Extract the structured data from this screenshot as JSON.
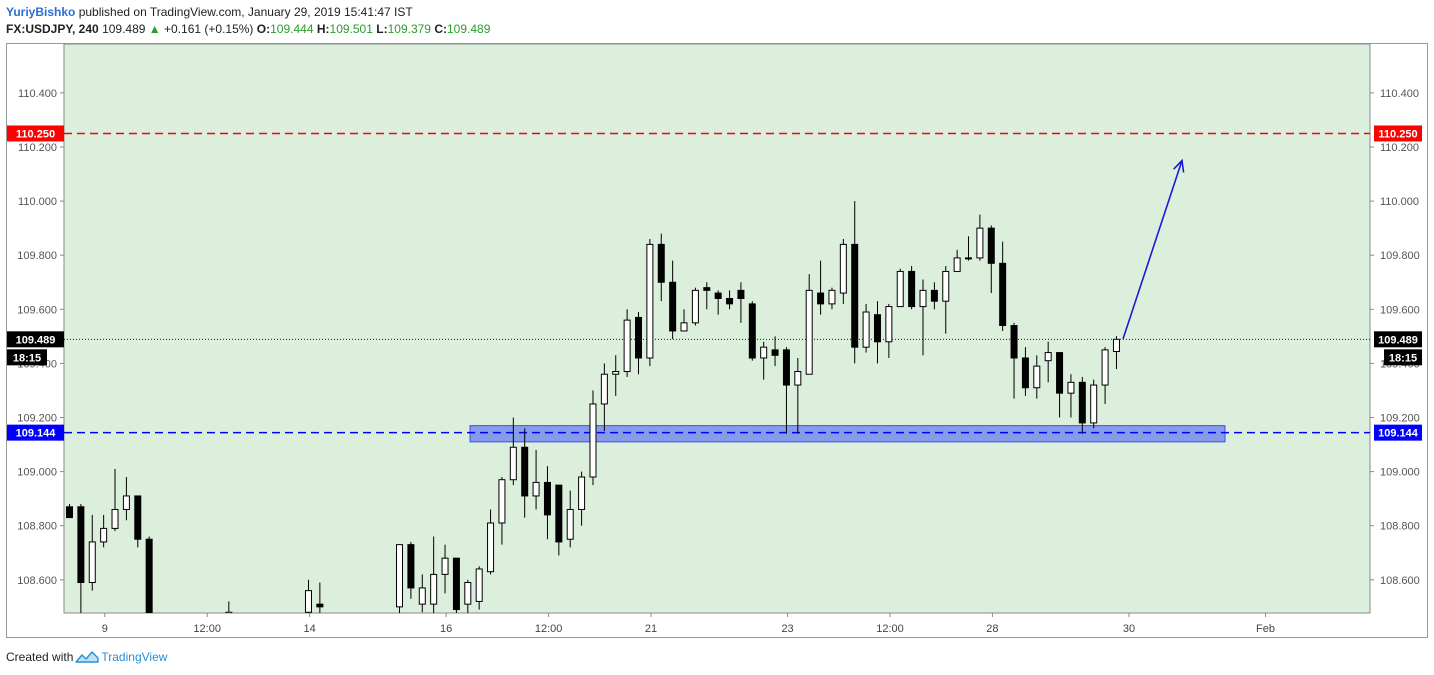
{
  "header": {
    "author": "YuriyBishko",
    "published": "published on TradingView.com, January 29, 2019 15:41:47 IST",
    "symbol": "FX:USDJPY, 240",
    "price": "109.489",
    "change": "+0.161 (+0.15%)",
    "o_label": "O:",
    "o_value": "109.444",
    "h_label": "H:",
    "h_value": "109.501",
    "l_label": "L:",
    "l_value": "109.379",
    "c_label": "C:",
    "c_value": "109.489"
  },
  "footer": {
    "created": "Created with",
    "brand": "TradingView",
    "logo_icon": "tradingview-logo-icon"
  },
  "colors": {
    "background": "#dcefdc",
    "resistance": "#ff0000",
    "support": "#0000ff",
    "zone": "#6b7ff0",
    "arrow": "#1a1ad6",
    "up_candle": "#ffffff",
    "down_candle": "#000000"
  },
  "chart_data": {
    "type": "candlestick",
    "symbol": "FX:USDJPY",
    "interval": "240",
    "ylim": [
      108.48,
      110.5
    ],
    "y_ticks": [
      "110.400",
      "110.200",
      "110.000",
      "109.800",
      "109.600",
      "109.400",
      "109.200",
      "109.000",
      "108.800",
      "108.600"
    ],
    "x_ticks": [
      "9",
      "12:00",
      "14",
      "16",
      "12:00",
      "21",
      "23",
      "12:00",
      "28",
      "30",
      "Feb"
    ],
    "grid": false,
    "price_labels": {
      "current": "109.489",
      "countdown": "18:15",
      "resistance": "110.250",
      "support": "109.144"
    },
    "resistance_level": 110.25,
    "support_level": 109.144,
    "last_price": 109.489,
    "support_zone": [
      109.11,
      109.17
    ],
    "projection_arrow": {
      "from": 109.49,
      "to": 110.15
    },
    "candles": [
      [
        108.87,
        108.88,
        108.85,
        108.83
      ],
      [
        108.87,
        108.88,
        108.45,
        108.59
      ],
      [
        108.59,
        108.84,
        108.56,
        108.74
      ],
      [
        108.74,
        108.84,
        108.72,
        108.79
      ],
      [
        108.79,
        109.01,
        108.78,
        108.86
      ],
      [
        108.86,
        108.98,
        108.82,
        108.91
      ],
      [
        108.91,
        108.91,
        108.72,
        108.75
      ],
      [
        108.75,
        108.76,
        108.4,
        108.45
      ],
      null,
      null,
      null,
      null,
      null,
      null,
      [
        108.45,
        108.52,
        108.4,
        108.48
      ],
      null,
      null,
      null,
      null,
      null,
      null,
      [
        108.48,
        108.6,
        108.47,
        108.56
      ],
      [
        108.51,
        108.59,
        108.45,
        108.5
      ],
      null,
      null,
      null,
      null,
      null,
      null,
      [
        108.5,
        108.73,
        108.46,
        108.73
      ],
      [
        108.73,
        108.74,
        108.53,
        108.57
      ],
      [
        108.51,
        108.62,
        108.48,
        108.57
      ],
      [
        108.51,
        108.76,
        108.47,
        108.62
      ],
      [
        108.62,
        108.73,
        108.55,
        108.68
      ],
      [
        108.68,
        108.68,
        108.44,
        108.49
      ],
      [
        108.51,
        108.6,
        108.47,
        108.59
      ],
      [
        108.52,
        108.65,
        108.49,
        108.64
      ],
      [
        108.63,
        108.86,
        108.62,
        108.81
      ],
      [
        108.81,
        108.98,
        108.73,
        108.97
      ],
      [
        108.97,
        109.2,
        108.95,
        109.09
      ],
      [
        109.09,
        109.16,
        108.83,
        108.91
      ],
      [
        108.91,
        109.08,
        108.86,
        108.96
      ],
      [
        108.96,
        109.02,
        108.75,
        108.84
      ],
      [
        108.95,
        108.95,
        108.69,
        108.74
      ],
      [
        108.75,
        108.93,
        108.72,
        108.86
      ],
      [
        108.86,
        109.0,
        108.8,
        108.98
      ],
      [
        108.98,
        109.3,
        108.95,
        109.25
      ],
      [
        109.25,
        109.4,
        109.15,
        109.36
      ],
      [
        109.36,
        109.43,
        109.28,
        109.37
      ],
      [
        109.37,
        109.6,
        109.35,
        109.56
      ],
      [
        109.57,
        109.59,
        109.36,
        109.42
      ],
      [
        109.42,
        109.86,
        109.39,
        109.84
      ],
      [
        109.84,
        109.88,
        109.63,
        109.7
      ],
      [
        109.7,
        109.78,
        109.49,
        109.52
      ],
      [
        109.52,
        109.6,
        109.52,
        109.55
      ],
      [
        109.55,
        109.68,
        109.54,
        109.67
      ],
      [
        109.68,
        109.7,
        109.6,
        109.67
      ],
      [
        109.66,
        109.67,
        109.58,
        109.64
      ],
      [
        109.64,
        109.67,
        109.6,
        109.62
      ],
      [
        109.67,
        109.7,
        109.55,
        109.64
      ],
      [
        109.62,
        109.63,
        109.41,
        109.42
      ],
      [
        109.42,
        109.48,
        109.34,
        109.46
      ],
      [
        109.45,
        109.5,
        109.39,
        109.43
      ],
      [
        109.45,
        109.46,
        109.14,
        109.32
      ],
      [
        109.32,
        109.42,
        109.14,
        109.37
      ],
      [
        109.36,
        109.73,
        109.36,
        109.67
      ],
      [
        109.66,
        109.78,
        109.58,
        109.62
      ],
      [
        109.62,
        109.68,
        109.6,
        109.67
      ],
      [
        109.66,
        109.86,
        109.62,
        109.84
      ],
      [
        109.84,
        110.0,
        109.4,
        109.46
      ],
      [
        109.46,
        109.62,
        109.44,
        109.59
      ],
      [
        109.58,
        109.63,
        109.4,
        109.48
      ],
      [
        109.48,
        109.62,
        109.42,
        109.61
      ],
      [
        109.61,
        109.75,
        109.61,
        109.74
      ],
      [
        109.74,
        109.76,
        109.6,
        109.61
      ],
      [
        109.61,
        109.71,
        109.43,
        109.67
      ],
      [
        109.67,
        109.7,
        109.6,
        109.63
      ],
      [
        109.63,
        109.76,
        109.51,
        109.74
      ],
      [
        109.74,
        109.82,
        109.74,
        109.79
      ],
      [
        109.79,
        109.87,
        109.78,
        109.79
      ],
      [
        109.79,
        109.95,
        109.78,
        109.9
      ],
      [
        109.9,
        109.91,
        109.66,
        109.77
      ],
      [
        109.77,
        109.85,
        109.52,
        109.54
      ],
      [
        109.54,
        109.55,
        109.27,
        109.42
      ],
      [
        109.42,
        109.46,
        109.28,
        109.31
      ],
      [
        109.31,
        109.43,
        109.27,
        109.39
      ],
      [
        109.41,
        109.48,
        109.33,
        109.44
      ],
      [
        109.44,
        109.44,
        109.2,
        109.29
      ],
      [
        109.29,
        109.36,
        109.2,
        109.33
      ],
      [
        109.33,
        109.35,
        109.14,
        109.18
      ],
      [
        109.18,
        109.34,
        109.16,
        109.32
      ],
      [
        109.32,
        109.46,
        109.25,
        109.45
      ],
      [
        109.444,
        109.501,
        109.379,
        109.489
      ]
    ]
  }
}
